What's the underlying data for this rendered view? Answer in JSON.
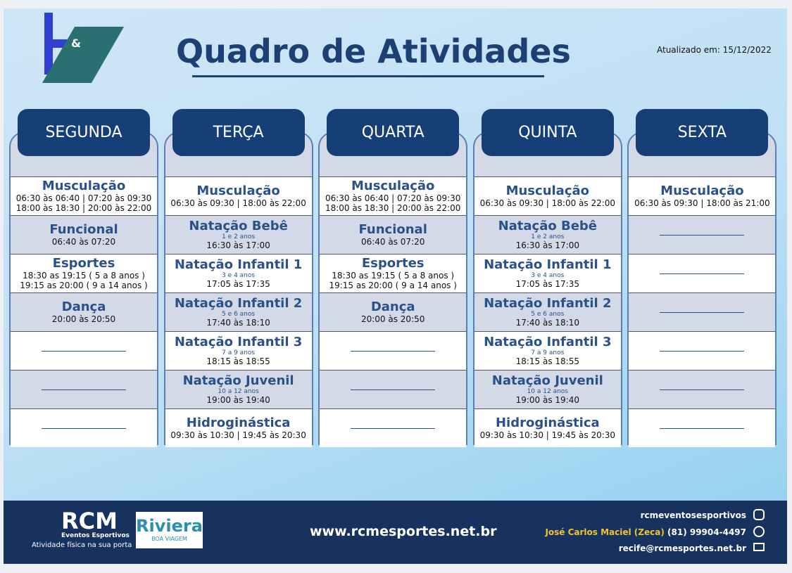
{
  "header": {
    "logo_mark": "&",
    "title": "Quadro de Atividades",
    "updated": "Atualizado em: 15/12/2022"
  },
  "days": [
    {
      "name": "SEGUNDA",
      "rows": [
        {
          "activity": "Musculação",
          "times": [
            "06:30 às 06:40 | 07:20 às 09:30",
            "18:00 às 18:30 | 20:00 às 22:00"
          ]
        },
        {
          "activity": "Funcional",
          "times": [
            "06:40 às 07:20"
          ]
        },
        {
          "activity": "Esportes",
          "times": [
            "18:30 as 19:15 ( 5 a 8 anos )",
            "19:15 as 20:00 ( 9 a 14 anos )"
          ]
        },
        {
          "activity": "Dança",
          "times": [
            "20:00 às 20:50"
          ]
        }
      ]
    },
    {
      "name": "TERÇA",
      "rows": [
        {
          "activity": "Musculação",
          "times": [
            "06:30 às 09:30 | 18:00 às 22:00"
          ]
        },
        {
          "activity": "Natação Bebê",
          "note": "1 e 2 anos",
          "times": [
            "16:30 às 17:00"
          ]
        },
        {
          "activity": "Natação Infantil 1",
          "note": "3 e 4 anos",
          "times": [
            "17:05 às 17:35"
          ]
        },
        {
          "activity": "Natação Infantil 2",
          "note": "5 e 6 anos",
          "times": [
            "17:40 às 18:10"
          ]
        },
        {
          "activity": "Natação Infantil 3",
          "note": "7 a 9 anos",
          "times": [
            "18:15 às 18:55"
          ]
        },
        {
          "activity": "Natação Juvenil",
          "note": "10 a 12 anos",
          "times": [
            "19:00 às 19:40"
          ]
        },
        {
          "activity": "Hidroginástica",
          "times": [
            "09:30 às 10:30 | 19:45 às 20:30"
          ]
        }
      ]
    },
    {
      "name": "QUARTA",
      "rows": [
        {
          "activity": "Musculação",
          "times": [
            "06:30 às 06:40 | 07:20 às 09:30",
            "18:00 às 18:30 | 20:00 às 22:00"
          ]
        },
        {
          "activity": "Funcional",
          "times": [
            "06:40 às 07:20"
          ]
        },
        {
          "activity": "Esportes",
          "times": [
            "18:30 as 19:15 ( 5 a 8 anos )",
            "19:15 as 20:00 ( 9 a 14 anos )"
          ]
        },
        {
          "activity": "Dança",
          "times": [
            "20:00 às 20:50"
          ]
        }
      ]
    },
    {
      "name": "QUINTA",
      "rows": [
        {
          "activity": "Musculação",
          "times": [
            "06:30 às 09:30 | 18:00 às 22:00"
          ]
        },
        {
          "activity": "Natação Bebê",
          "note": "1 e 2 anos",
          "times": [
            "16:30 às 17:00"
          ]
        },
        {
          "activity": "Natação Infantil 1",
          "note": "3 e 4 anos",
          "times": [
            "17:05 às 17:35"
          ]
        },
        {
          "activity": "Natação Infantil 2",
          "note": "5 e 6 anos",
          "times": [
            "17:40 às 18:10"
          ]
        },
        {
          "activity": "Natação Infantil 3",
          "note": "7 a 9 anos",
          "times": [
            "18:15 às 18:55"
          ]
        },
        {
          "activity": "Natação Juvenil",
          "note": "10 a 12 anos",
          "times": [
            "19:00 às 19:40"
          ]
        },
        {
          "activity": "Hidroginástica",
          "times": [
            "09:30 às 10:30 | 19:45 às 20:30"
          ]
        }
      ]
    },
    {
      "name": "SEXTA",
      "rows": [
        {
          "activity": "Musculação",
          "times": [
            "06:30 às 09:30 | 18:00 às 21:00"
          ]
        }
      ]
    }
  ],
  "footer": {
    "brand": "RCM",
    "brand_sub": "Eventos Esportivos",
    "slogan": "Atividade física na sua porta",
    "partner": "Riviera",
    "partner_sub": "BOA VIAGEM",
    "website": "www.rcmesportes.net.br",
    "instagram": "rcmeventosesportivos",
    "contact_name": "José Carlos Maciel (Zeca)",
    "phone": "(81) 99904-4497",
    "email": "recife@rcmesportes.net.br"
  }
}
